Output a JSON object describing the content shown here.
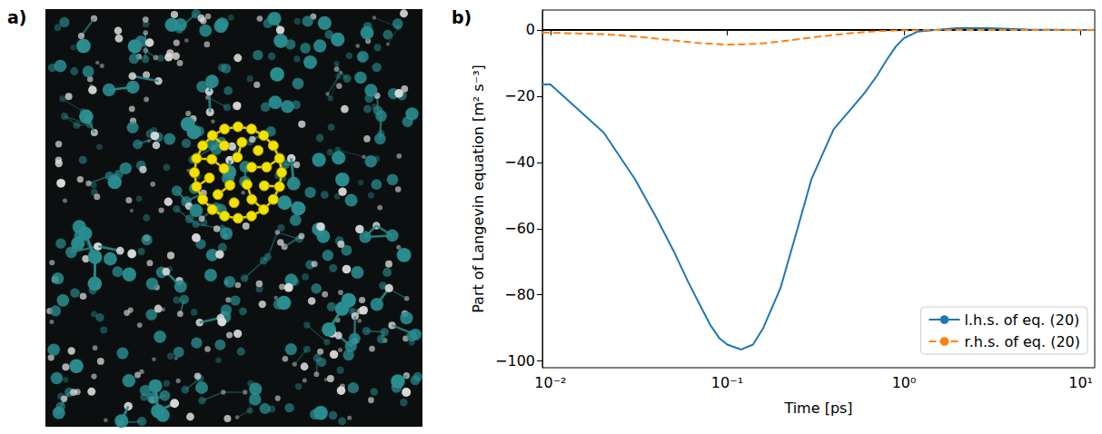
{
  "panel_labels": [
    "a)",
    "b)"
  ],
  "chart_data": {
    "type": "line",
    "x_label": "Time [ps]",
    "y_label": "Part of Langevin equation [m² s⁻³]",
    "log": "x",
    "grid": false,
    "legend": "lower right",
    "xlim": [
      0.009,
      12
    ],
    "xticks": [
      {
        "value": 0.01,
        "label": "10⁻²"
      },
      {
        "value": 0.1,
        "label": "10⁻¹"
      },
      {
        "value": 1,
        "label": "10⁰"
      },
      {
        "value": 10,
        "label": "10¹"
      }
    ],
    "ylim": [
      -102,
      6
    ],
    "yticks": [
      {
        "value": -100,
        "label": "−100"
      },
      {
        "value": -80,
        "label": "−80"
      },
      {
        "value": -60,
        "label": "−60"
      },
      {
        "value": -40,
        "label": "−40"
      },
      {
        "value": -20,
        "label": "−20"
      },
      0
    ],
    "hline": 0,
    "series": [
      {
        "name": "l.h.s. of eq. (20)",
        "color": "#1f77b4",
        "line_style": "solid",
        "x": [
          0.009,
          0.01,
          0.02,
          0.03,
          0.04,
          0.05,
          0.06,
          0.07,
          0.08,
          0.09,
          0.1,
          0.12,
          0.14,
          0.16,
          0.2,
          0.25,
          0.3,
          0.4,
          0.5,
          0.6,
          0.7,
          0.8,
          0.9,
          1,
          1.2,
          1.5,
          2,
          3,
          5,
          10,
          12
        ],
        "values": [
          -16.5,
          -16.5,
          -31,
          -45,
          -57,
          -67,
          -76,
          -83,
          -89,
          -93,
          -95,
          -96.5,
          -95,
          -90,
          -78,
          -60,
          -45,
          -30,
          -24,
          -19,
          -14,
          -9,
          -5,
          -2.5,
          -0.5,
          0,
          0.5,
          0.5,
          0.1,
          0,
          0
        ]
      },
      {
        "name": "r.h.s. of eq. (20)",
        "color": "#ff7f0e",
        "line_style": "dashed",
        "x": [
          0.009,
          0.02,
          0.03,
          0.05,
          0.07,
          0.1,
          0.15,
          0.2,
          0.3,
          0.5,
          0.7,
          1,
          2,
          10,
          12
        ],
        "values": [
          -0.8,
          -1.3,
          -2,
          -3.2,
          -4,
          -4.5,
          -4.2,
          -3.5,
          -2.3,
          -1,
          -0.4,
          -0.1,
          0,
          0,
          0
        ]
      }
    ]
  }
}
